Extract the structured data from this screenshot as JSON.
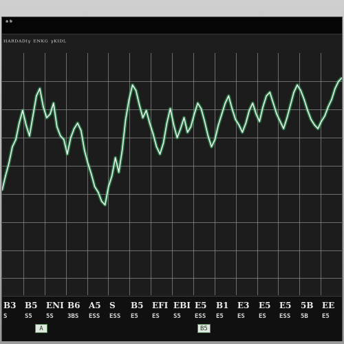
{
  "window": {
    "title": "ᵃᵇ",
    "caption": "ᴴᴬᴿᴰᴬᴰᴵᵞ ᴱᴺᴷᴳ ᵞᴷᴵᴰᴸ"
  },
  "colors": {
    "background": "#1a1a1a",
    "grid": "#8a8a8a",
    "line": "#e6f2ec",
    "line_glow": "#33d16a"
  },
  "chart_data": {
    "type": "line",
    "title": "",
    "xlabel": "",
    "ylabel": "",
    "grid": true,
    "legend": "none",
    "x": [
      0,
      1,
      2,
      3,
      4,
      5,
      6,
      7,
      8,
      9,
      10,
      11,
      12,
      13,
      14,
      15,
      16,
      17,
      18,
      19,
      20,
      21,
      22,
      23,
      24,
      25,
      26,
      27,
      28,
      29,
      30,
      31,
      32,
      33,
      34,
      35,
      36,
      37,
      38,
      39,
      40,
      41,
      42,
      43,
      44,
      45,
      46,
      47,
      48,
      49,
      50,
      51,
      52,
      53,
      54,
      55,
      56,
      57,
      58,
      59,
      60,
      61,
      62,
      63,
      64,
      65,
      66,
      67,
      68,
      69,
      70,
      71,
      72,
      73,
      74,
      75,
      76,
      77,
      78,
      79,
      80,
      81,
      82,
      83,
      84,
      85,
      86,
      87,
      88,
      89,
      90,
      91,
      92,
      93,
      94,
      95,
      96,
      97,
      98,
      99
    ],
    "xlim": [
      0,
      99
    ],
    "ylim": [
      0,
      100
    ],
    "series": [
      {
        "name": "",
        "values": [
          38,
          46,
          53,
          62,
          66,
          75,
          82,
          74,
          68,
          79,
          90,
          94,
          84,
          78,
          80,
          86,
          73,
          68,
          66,
          58,
          67,
          72,
          75,
          71,
          60,
          53,
          47,
          40,
          37,
          32,
          30,
          40,
          46,
          56,
          48,
          60,
          77,
          88,
          96,
          93,
          85,
          78,
          82,
          75,
          69,
          62,
          58,
          64,
          75,
          83,
          74,
          67,
          72,
          78,
          70,
          73,
          80,
          86,
          83,
          76,
          68,
          62,
          66,
          74,
          80,
          86,
          90,
          83,
          77,
          74,
          70,
          75,
          82,
          86,
          80,
          76,
          84,
          90,
          92,
          86,
          80,
          76,
          72,
          78,
          85,
          92,
          96,
          93,
          88,
          82,
          77,
          74,
          72,
          76,
          79,
          84,
          88,
          94,
          98,
          100
        ]
      }
    ]
  },
  "ticker": {
    "codes": [
      "B3",
      "B5",
      "ENI",
      "B6",
      "A5",
      "S",
      "B5",
      "EFI",
      "EBI",
      "E5",
      "B1",
      "E3",
      "E5",
      "E5",
      "5B",
      "EE"
    ],
    "subs": [
      "S",
      "S5",
      "5S",
      "3BS",
      "ESS",
      "ESS",
      "E5",
      "ES",
      "S5",
      "ESS",
      "E5",
      "ES",
      "ES",
      "ESS",
      "5B",
      "E5"
    ],
    "tabs": [
      "A",
      "B5"
    ]
  }
}
